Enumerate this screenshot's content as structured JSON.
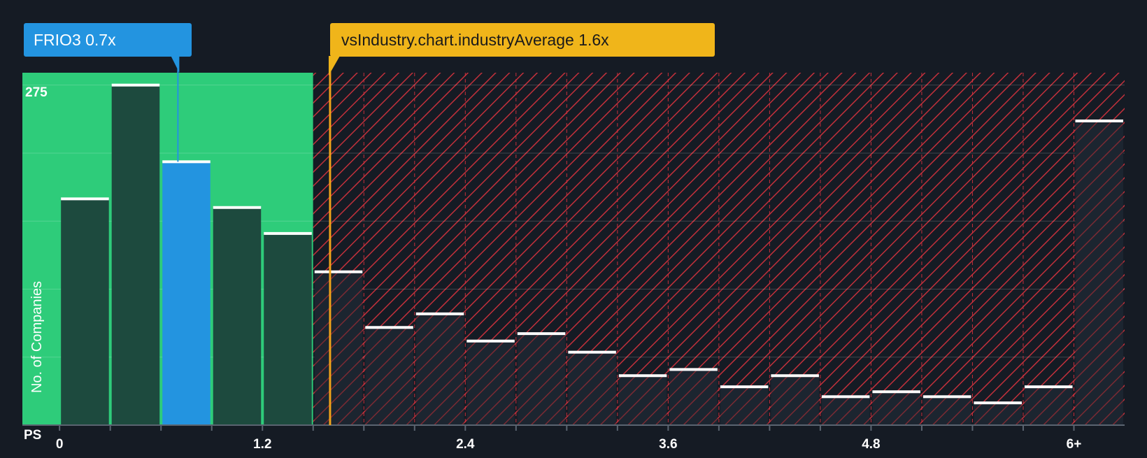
{
  "chart_data": {
    "type": "bar",
    "xlabel": "PS",
    "ylabel": "No. of Companies",
    "y_tick_labels": [
      "275"
    ],
    "x_tick_labels": [
      "0",
      "1.2",
      "2.4",
      "3.6",
      "4.8",
      "6+"
    ],
    "x_tick_values": [
      0,
      1.2,
      2.4,
      3.6,
      4.8,
      6
    ],
    "bin_width": 0.3,
    "bins": [
      {
        "x0": 0.0,
        "x1": 0.3,
        "value": 183
      },
      {
        "x0": 0.3,
        "x1": 0.6,
        "value": 275
      },
      {
        "x0": 0.6,
        "x1": 0.9,
        "value": 213,
        "highlight": true
      },
      {
        "x0": 0.9,
        "x1": 1.2,
        "value": 176
      },
      {
        "x0": 1.2,
        "x1": 1.5,
        "value": 155
      },
      {
        "x0": 1.5,
        "x1": 1.8,
        "value": 124
      },
      {
        "x0": 1.8,
        "x1": 2.1,
        "value": 79
      },
      {
        "x0": 2.1,
        "x1": 2.4,
        "value": 90
      },
      {
        "x0": 2.4,
        "x1": 2.7,
        "value": 68
      },
      {
        "x0": 2.7,
        "x1": 3.0,
        "value": 74
      },
      {
        "x0": 3.0,
        "x1": 3.3,
        "value": 59
      },
      {
        "x0": 3.3,
        "x1": 3.6,
        "value": 40
      },
      {
        "x0": 3.6,
        "x1": 3.9,
        "value": 45
      },
      {
        "x0": 3.9,
        "x1": 4.2,
        "value": 31
      },
      {
        "x0": 4.2,
        "x1": 4.5,
        "value": 40
      },
      {
        "x0": 4.5,
        "x1": 4.8,
        "value": 23
      },
      {
        "x0": 4.8,
        "x1": 5.1,
        "value": 27
      },
      {
        "x0": 5.1,
        "x1": 5.4,
        "value": 23
      },
      {
        "x0": 5.4,
        "x1": 5.7,
        "value": 18
      },
      {
        "x0": 5.7,
        "x1": 6.0,
        "value": 31
      },
      {
        "x0": 6.0,
        "x1": 6.3,
        "value": 246
      }
    ],
    "ylim": [
      0,
      285
    ],
    "xlim": [
      -0.22,
      6.3
    ],
    "grid": true,
    "company": {
      "label": "FRIO3 0.7x",
      "value": 0.7
    },
    "industry": {
      "label": "vsIndustry.chart.industryAverage 1.6x",
      "value": 1.6
    },
    "colors": {
      "background": "#151b24",
      "good_zone": "#2ecc7a",
      "bar": "#1d4a3e",
      "highlight_bar": "#2394e0",
      "bad_zone_stripe": "#c2303b",
      "company_label_bg": "#2394e0",
      "industry_label_bg": "#f0b51a",
      "industry_line": "#f0a21a"
    }
  }
}
